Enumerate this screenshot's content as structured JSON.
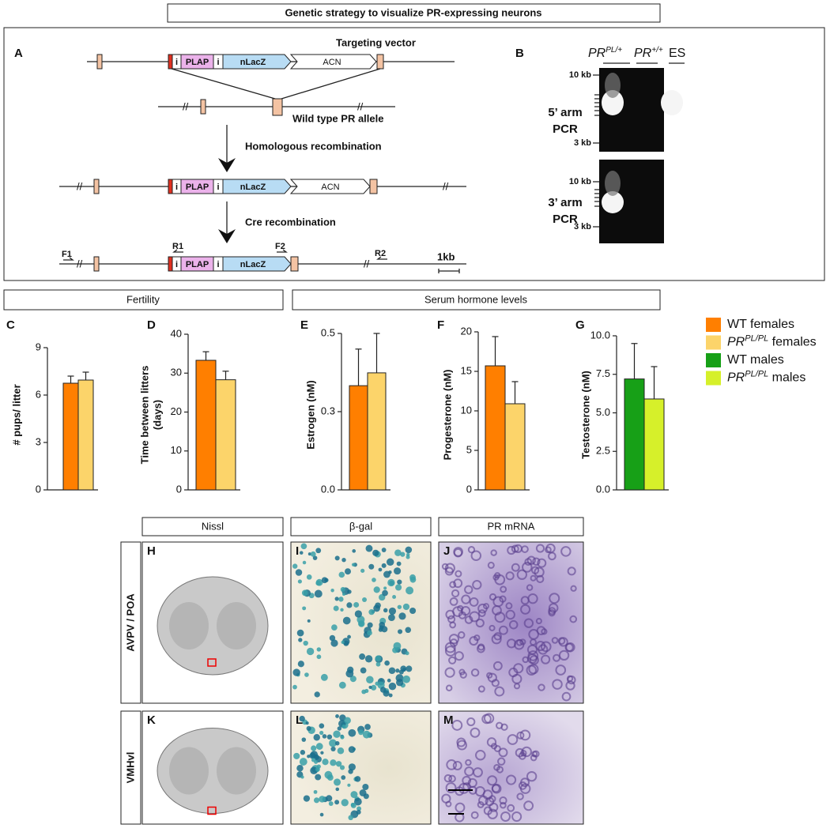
{
  "header": {
    "title": "Genetic strategy to visualize PR-expressing neurons"
  },
  "panel_a": {
    "letter": "A",
    "labels": {
      "targeting_vector": "Targeting vector",
      "wild_type": "Wild type PR allele",
      "homologous": "Homologous recombination",
      "cre": "Cre recombination",
      "scale": "1kb"
    },
    "elements": {
      "i": "i",
      "plap": "PLAP",
      "nlacz": "nLacZ",
      "acn": "ACN"
    },
    "primers": {
      "f1": "F1",
      "r1": "R1",
      "f2": "F2",
      "r2": "R2"
    }
  },
  "panel_b": {
    "letter": "B",
    "lanes": [
      {
        "base": "PR",
        "sup": "PL/+"
      },
      {
        "base": "PR",
        "sup": "+/+"
      },
      {
        "base": "ES"
      }
    ],
    "gels": [
      {
        "name": [
          "5’ arm",
          "PCR"
        ],
        "marker_top": "10 kb",
        "marker_bottom": "3 kb"
      },
      {
        "name": [
          "3’ arm",
          "PCR"
        ],
        "marker_top": "10 kb",
        "marker_bottom": "3 kb"
      }
    ]
  },
  "sections": {
    "fertility": "Fertility",
    "serum": "Serum hormone levels"
  },
  "chart_data": [
    {
      "type": "bar",
      "letter": "C",
      "ylabel": [
        "# pups/ litter"
      ],
      "ylim": [
        0,
        9
      ],
      "yticks": [
        0,
        3,
        6,
        9
      ],
      "values": [
        6.75,
        6.95
      ],
      "errors": [
        0.45,
        0.5
      ],
      "colors": [
        "#ff7f00",
        "#fcd46a"
      ]
    },
    {
      "type": "bar",
      "letter": "D",
      "ylabel": [
        "Time between litters",
        "(days)"
      ],
      "ylim": [
        0,
        40
      ],
      "yticks": [
        0,
        10,
        20,
        30,
        40
      ],
      "values": [
        33.3,
        28.3
      ],
      "errors": [
        2.2,
        2.2
      ],
      "colors": [
        "#ff7f00",
        "#fcd46a"
      ]
    },
    {
      "type": "bar",
      "letter": "E",
      "ylabel": [
        "Estrogen (nM)"
      ],
      "ylim": [
        0,
        0.5
      ],
      "yticks": [
        {
          "value": 0,
          "label": "0.0"
        },
        {
          "value": 0.25,
          "label": "0.3"
        },
        0.5
      ],
      "values": [
        0.333,
        0.374
      ],
      "errors": [
        0.117,
        0.126
      ],
      "colors": [
        "#ff7f00",
        "#fcd46a"
      ]
    },
    {
      "type": "bar",
      "letter": "F",
      "ylabel": [
        "Progesterone (nM)"
      ],
      "ylim": [
        0,
        20
      ],
      "yticks": [
        0,
        5,
        10,
        15,
        20
      ],
      "values": [
        15.7,
        10.9
      ],
      "errors": [
        3.7,
        2.8
      ],
      "colors": [
        "#ff7f00",
        "#fcd46a"
      ]
    },
    {
      "type": "bar",
      "letter": "G",
      "ylabel": [
        "Testosterone (nM)"
      ],
      "ylim": [
        0,
        10
      ],
      "yticks": [
        {
          "value": 0,
          "label": "0.0"
        },
        2.5,
        {
          "value": 5,
          "label": "5.0"
        },
        7.5,
        {
          "value": 10,
          "label": "10.0"
        }
      ],
      "values": [
        7.2,
        5.9
      ],
      "errors": [
        2.3,
        2.1
      ],
      "colors": [
        "#17a017",
        "#d6f02a"
      ]
    }
  ],
  "legend": [
    {
      "base": "WT females",
      "color": "#ff7f00"
    },
    {
      "base": "PR",
      "sup": "PL/PL",
      "rest": " females",
      "color": "#fcd46a"
    },
    {
      "base": "WT males",
      "color": "#17a017"
    },
    {
      "base": "PR",
      "sup": "PL/PL",
      "rest": " males",
      "color": "#d6f02a"
    }
  ],
  "histology": {
    "columns": [
      "Nissl",
      "β-gal",
      "PR mRNA"
    ],
    "rows": [
      {
        "label": "AVPV / POA",
        "letters": [
          "H",
          "I",
          "J"
        ]
      },
      {
        "label": "VMHvl",
        "letters": [
          "K",
          "L",
          "M"
        ]
      }
    ]
  }
}
